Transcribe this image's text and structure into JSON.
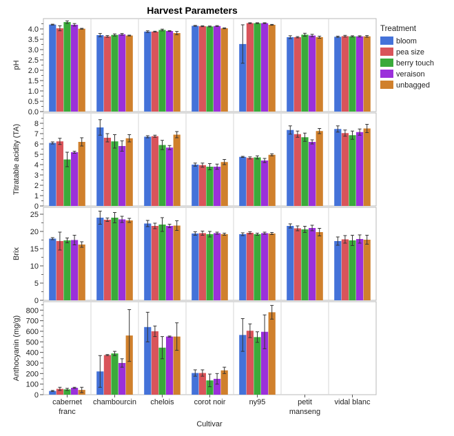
{
  "chart_data": {
    "type": "bar",
    "title": "Harvest Parameters",
    "xlabel": "Cultivar",
    "categories": [
      "cabernet franc",
      "chambourcin",
      "chelois",
      "corot noir",
      "ny95",
      "petit manseng",
      "vidal blanc"
    ],
    "category_lines": [
      [
        "cabernet",
        "franc"
      ],
      [
        "chambourcin"
      ],
      [
        "chelois"
      ],
      [
        "corot noir"
      ],
      [
        "ny95"
      ],
      [
        "petit",
        "manseng"
      ],
      [
        "vidal blanc"
      ]
    ],
    "legend": {
      "title": "Treatment",
      "placement": "right",
      "items": [
        "bloom",
        "pea size",
        "berry touch",
        "veraison",
        "unbagged"
      ]
    },
    "series_colors": [
      "#4472D9",
      "#D9545A",
      "#3AAA3A",
      "#9B30DB",
      "#D0802C"
    ],
    "grid": false,
    "panels": [
      {
        "ylabel": "pH",
        "ylim": [
          0,
          4.5
        ],
        "yticks": [
          0,
          0.5,
          1,
          1.5,
          2,
          2.5,
          3,
          3.5,
          4
        ],
        "ytick_labels": [
          "0.0",
          "0.5",
          "1.0",
          "1.5",
          "2.0",
          "2.5",
          "3.0",
          "3.5",
          "4.0"
        ],
        "series": [
          {
            "name": "bloom",
            "values": [
              4.21,
              3.7,
              3.87,
              4.15,
              3.27,
              3.6,
              3.62
            ],
            "errors": [
              0.02,
              0.08,
              0.04,
              0.02,
              0.93,
              0.07,
              0.03
            ]
          },
          {
            "name": "pea size",
            "values": [
              4.03,
              3.64,
              3.87,
              4.13,
              4.28,
              3.6,
              3.65
            ],
            "errors": [
              0.12,
              0.04,
              0.02,
              0.02,
              0.02,
              0.03,
              0.04
            ]
          },
          {
            "name": "berry touch",
            "values": [
              4.33,
              3.71,
              3.95,
              4.12,
              4.28,
              3.72,
              3.64
            ],
            "errors": [
              0.06,
              0.05,
              0.04,
              0.02,
              0.02,
              0.07,
              0.03
            ]
          },
          {
            "name": "veraison",
            "values": [
              4.2,
              3.74,
              3.9,
              4.14,
              4.28,
              3.68,
              3.64
            ],
            "errors": [
              0.06,
              0.04,
              0.02,
              0.02,
              0.02,
              0.06,
              0.03
            ]
          },
          {
            "name": "unbagged",
            "values": [
              4.01,
              3.68,
              3.8,
              4.03,
              4.2,
              3.6,
              3.64
            ],
            "errors": [
              0.02,
              0.02,
              0.08,
              0.02,
              0.02,
              0.05,
              0.04
            ]
          }
        ]
      },
      {
        "ylabel": "Titratable acidity (TA)",
        "ylim": [
          0,
          9
        ],
        "yticks": [
          0,
          1,
          2,
          3,
          4,
          5,
          6,
          7,
          8
        ],
        "ytick_labels": [
          "0",
          "1",
          "2",
          "3",
          "4",
          "5",
          "6",
          "7",
          "8"
        ],
        "series": [
          {
            "name": "bloom",
            "values": [
              6.1,
              7.6,
              6.7,
              4.0,
              4.75,
              7.35,
              7.45
            ],
            "errors": [
              0.1,
              0.75,
              0.1,
              0.15,
              0.05,
              0.4,
              0.3
            ]
          },
          {
            "name": "pea size",
            "values": [
              6.25,
              6.6,
              6.75,
              3.95,
              4.65,
              6.95,
              7.05
            ],
            "errors": [
              0.3,
              0.4,
              0.1,
              0.2,
              0.1,
              0.3,
              0.3
            ]
          },
          {
            "name": "berry touch",
            "values": [
              4.5,
              6.25,
              5.9,
              3.8,
              4.7,
              6.65,
              6.85
            ],
            "errors": [
              0.7,
              0.65,
              0.45,
              0.3,
              0.15,
              0.4,
              0.4
            ]
          },
          {
            "name": "veraison",
            "values": [
              5.2,
              5.8,
              5.65,
              3.8,
              4.4,
              6.2,
              7.15
            ],
            "errors": [
              0.1,
              0.5,
              0.2,
              0.25,
              0.2,
              0.2,
              0.3
            ]
          },
          {
            "name": "unbagged",
            "values": [
              6.2,
              6.55,
              6.9,
              4.25,
              4.95,
              7.25,
              7.5
            ],
            "errors": [
              0.4,
              0.35,
              0.3,
              0.25,
              0.1,
              0.25,
              0.4
            ]
          }
        ]
      },
      {
        "ylabel": "Brix",
        "ylim": [
          0,
          27
        ],
        "yticks": [
          0,
          5,
          10,
          15,
          20,
          25
        ],
        "ytick_labels": [
          "0",
          "5",
          "10",
          "15",
          "20",
          "25"
        ],
        "series": [
          {
            "name": "bloom",
            "values": [
              17.9,
              24.0,
              22.3,
              19.4,
              19.2,
              21.6,
              17.2
            ],
            "errors": [
              0.3,
              1.9,
              0.9,
              0.5,
              0.4,
              0.6,
              1.2
            ]
          },
          {
            "name": "pea size",
            "values": [
              17.2,
              23.4,
              21.6,
              19.5,
              19.6,
              20.9,
              17.7
            ],
            "errors": [
              2.6,
              0.5,
              0.8,
              0.6,
              0.3,
              0.7,
              1.1
            ]
          },
          {
            "name": "berry touch",
            "values": [
              17.4,
              24.0,
              22.0,
              19.2,
              19.2,
              20.6,
              17.4
            ],
            "errors": [
              0.7,
              1.5,
              2.0,
              0.8,
              0.3,
              0.9,
              1.5
            ]
          },
          {
            "name": "veraison",
            "values": [
              17.5,
              23.5,
              21.6,
              19.5,
              19.5,
              21.0,
              17.8
            ],
            "errors": [
              1.4,
              0.9,
              0.5,
              0.3,
              0.3,
              0.8,
              1.2
            ]
          },
          {
            "name": "unbagged",
            "values": [
              16.2,
              23.2,
              21.7,
              19.2,
              19.4,
              19.8,
              17.6
            ],
            "errors": [
              0.8,
              0.6,
              1.4,
              0.3,
              0.3,
              1.1,
              1.3
            ]
          }
        ]
      },
      {
        "ylabel": "Anthocyanin (mg/g)",
        "ylim": [
          0,
          880
        ],
        "yticks": [
          0,
          100,
          200,
          300,
          400,
          500,
          600,
          700,
          800
        ],
        "ytick_labels": [
          "0",
          "100",
          "200",
          "300",
          "400",
          "500",
          "600",
          "700",
          "800"
        ],
        "series": [
          {
            "name": "bloom",
            "values": [
              35,
              220,
              640,
              205,
              565,
              null,
              null
            ],
            "errors": [
              5,
              150,
              140,
              30,
              155,
              null,
              null
            ]
          },
          {
            "name": "pea size",
            "values": [
              55,
              375,
              600,
              205,
              605,
              null,
              null
            ],
            "errors": [
              15,
              5,
              50,
              30,
              65,
              null,
              null
            ]
          },
          {
            "name": "berry touch",
            "values": [
              50,
              390,
              445,
              135,
              545,
              null,
              null
            ],
            "errors": [
              10,
              20,
              105,
              60,
              50,
              null,
              null
            ]
          },
          {
            "name": "veraison",
            "values": [
              65,
              300,
              550,
              150,
              595,
              null,
              null
            ],
            "errors": [
              5,
              40,
              5,
              50,
              160,
              null,
              null
            ]
          },
          {
            "name": "unbagged",
            "values": [
              45,
              560,
              550,
              230,
              780,
              null,
              null
            ],
            "errors": [
              25,
              245,
              130,
              30,
              65,
              null,
              null
            ]
          }
        ]
      }
    ]
  }
}
